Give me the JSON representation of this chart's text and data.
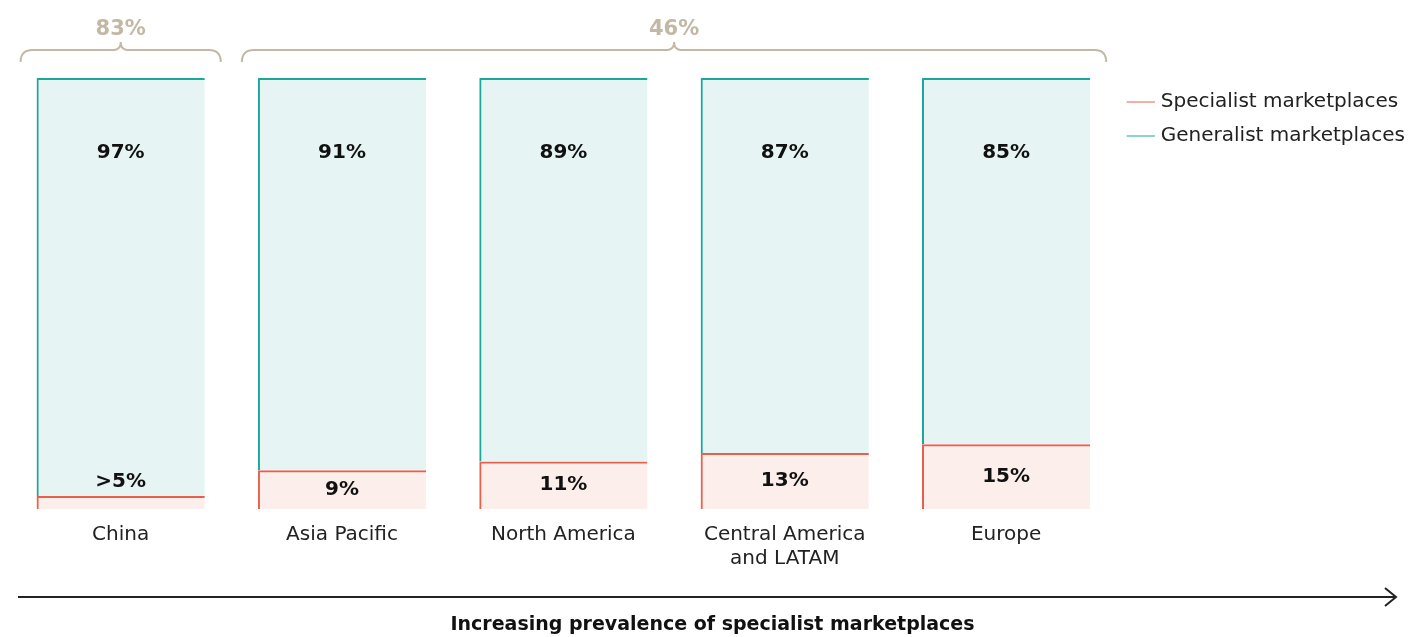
{
  "chart_data": {
    "type": "bar",
    "stacked": true,
    "xlabel": "Increasing prevalence of specialist marketplaces",
    "categories": [
      "China",
      "Asia Pacific",
      "North America",
      "Central America and LATAM",
      "Europe"
    ],
    "series": [
      {
        "name": "Specialist marketplaces",
        "color": "#e8604c",
        "values": [
          3,
          9,
          11,
          13,
          15
        ],
        "value_labels": [
          ">5%",
          "9%",
          "11%",
          "13%",
          "15%"
        ]
      },
      {
        "name": "Generalist marketplaces",
        "color": "#1aa89a",
        "values": [
          97,
          91,
          89,
          87,
          85
        ],
        "value_labels": [
          "97%",
          "91%",
          "89%",
          "87%",
          "85%"
        ]
      }
    ],
    "annotations": [
      "83%",
      "46%"
    ],
    "grid": false,
    "legend": "right"
  }
}
